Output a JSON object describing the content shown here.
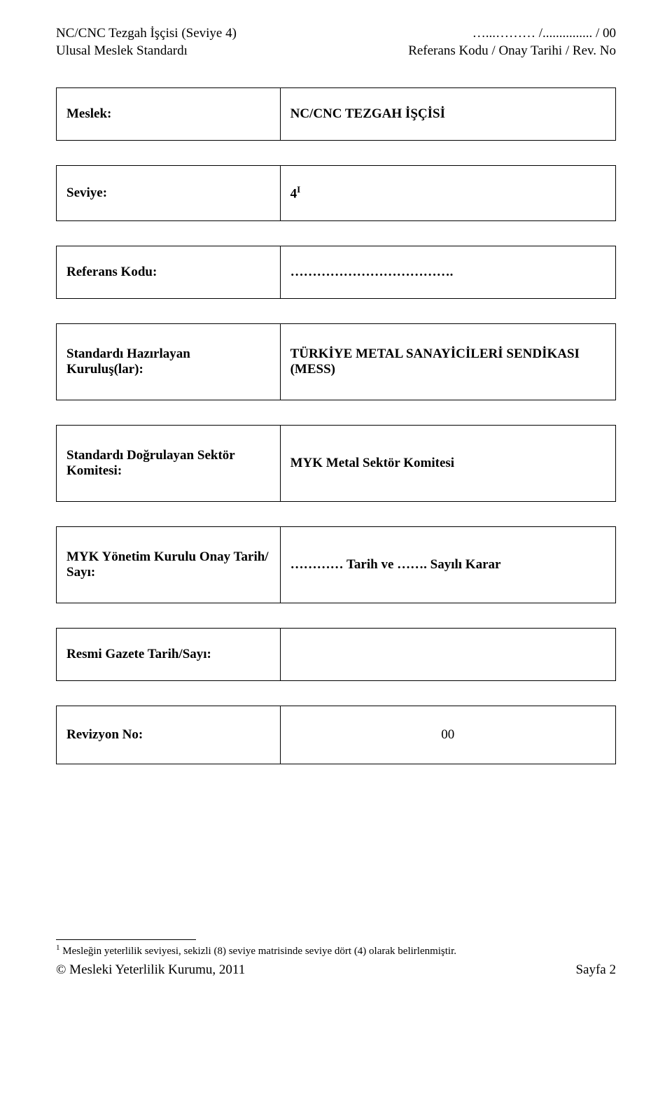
{
  "header": {
    "left_line1": "NC/CNC Tezgah İşçisi (Seviye 4)",
    "left_line2": "Ulusal Meslek Standardı",
    "right_line1": "…...……… /............... /    00",
    "right_line2": "Referans Kodu / Onay Tarihi / Rev. No"
  },
  "rows": {
    "meslek": {
      "label": "Meslek:",
      "value": "NC/CNC TEZGAH İŞÇİSİ"
    },
    "seviye": {
      "label": "Seviye:",
      "value_prefix": "4",
      "value_sup": "I"
    },
    "referans": {
      "label": "Referans Kodu:",
      "value": "………………………………."
    },
    "hazirlayan": {
      "label": "Standardı Hazırlayan Kuruluş(lar):",
      "value": "TÜRKİYE METAL SANAYİCİLERİ SENDİKASI (MESS)"
    },
    "dogrulayan": {
      "label": "Standardı Doğrulayan Sektör Komitesi:",
      "value": "MYK Metal Sektör Komitesi"
    },
    "onay": {
      "label": "MYK Yönetim Kurulu Onay Tarih/ Sayı:",
      "value": "………… Tarih ve ……. Sayılı Karar"
    },
    "resmi": {
      "label": "Resmi Gazete Tarih/Sayı:",
      "value": ""
    },
    "revizyon": {
      "label": "Revizyon No:",
      "value": "00"
    }
  },
  "footnote": {
    "sup": "1",
    "text": " Mesleğin yeterlilik seviyesi, sekizli (8) seviye matrisinde seviye dört (4) olarak belirlenmiştir."
  },
  "footer": {
    "left": "© Mesleki Yeterlilik Kurumu, 2011",
    "right": "Sayfa 2"
  }
}
